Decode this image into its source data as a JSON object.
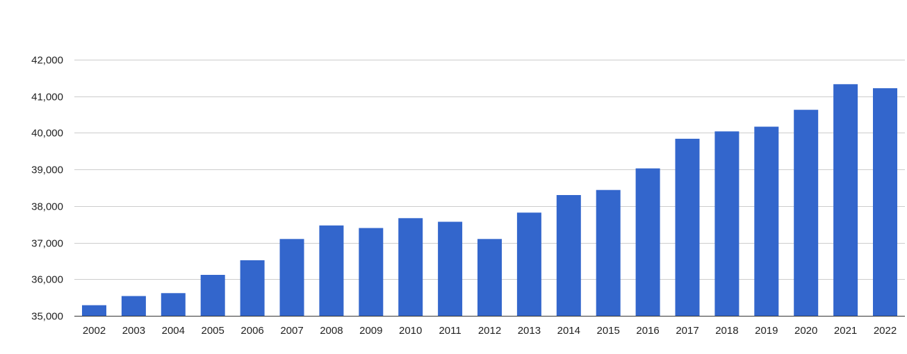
{
  "chart_data": {
    "type": "bar",
    "title": "",
    "xlabel": "",
    "ylabel": "",
    "categories": [
      "2002",
      "2003",
      "2004",
      "2005",
      "2006",
      "2007",
      "2008",
      "2009",
      "2010",
      "2011",
      "2012",
      "2013",
      "2014",
      "2015",
      "2016",
      "2017",
      "2018",
      "2019",
      "2020",
      "2021",
      "2022"
    ],
    "values": [
      35290,
      35540,
      35620,
      36120,
      36520,
      37100,
      37470,
      37400,
      37670,
      37570,
      37100,
      37820,
      38300,
      38440,
      39030,
      39840,
      40040,
      40170,
      40630,
      41330,
      41220
    ],
    "ylim": [
      35000,
      42000
    ],
    "yticks": [
      35000,
      36000,
      37000,
      38000,
      39000,
      40000,
      41000,
      42000
    ],
    "ytick_labels": [
      "35,000",
      "36,000",
      "37,000",
      "38,000",
      "39,000",
      "40,000",
      "41,000",
      "42,000"
    ],
    "grid": true,
    "legend": "none",
    "bar_color": "#3366cc"
  }
}
